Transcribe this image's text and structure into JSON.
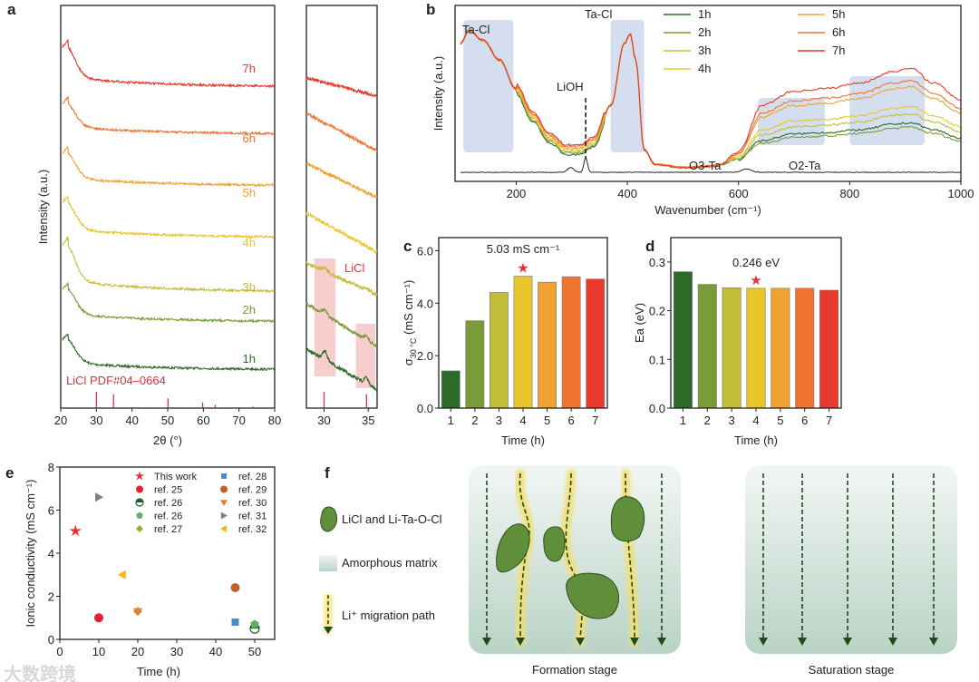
{
  "colors": {
    "1h": "#2c6a2a",
    "2h": "#7a9c38",
    "3h": "#c2bd38",
    "4h": "#e9c52c",
    "5h": "#f0a332",
    "6h": "#ee7430",
    "7h": "#e8392d",
    "ref": "#e0303a",
    "lioh": "#222222"
  },
  "panel_labels": {
    "a": "a",
    "b": "b",
    "c": "c",
    "d": "d",
    "e": "e",
    "f": "f"
  },
  "watermark": "大数跨境",
  "chart_data": [
    {
      "id": "a",
      "type": "line",
      "title": "",
      "xlabel": "2θ (°)",
      "ylabel": "Intensity (a.u.)",
      "xlim": [
        20,
        80
      ],
      "xticks": [
        20,
        30,
        40,
        50,
        60,
        70,
        80
      ],
      "series": [
        {
          "name": "1h"
        },
        {
          "name": "2h"
        },
        {
          "name": "3h"
        },
        {
          "name": "4h"
        },
        {
          "name": "5h"
        },
        {
          "name": "6h"
        },
        {
          "name": "7h"
        }
      ],
      "reference": {
        "label": "LiCl PDF#04–0664",
        "peaks": [
          30.0,
          34.8,
          50.1,
          59.8,
          63.3,
          73.9
        ],
        "relative_intensity": [
          1.0,
          0.85,
          0.6,
          0.35,
          0.2,
          0.1
        ]
      },
      "inset": {
        "xlim": [
          28,
          36
        ],
        "xticks": [
          30,
          35
        ],
        "annotation": "LiCl",
        "highlight_ranges": [
          [
            28.9,
            31.3
          ],
          [
            33.6,
            35.8
          ]
        ]
      }
    },
    {
      "id": "b",
      "type": "line",
      "xlabel": "Wavenumber (cm⁻¹)",
      "ylabel": "Intensity (a.u.)",
      "xlim": [
        90,
        1000
      ],
      "xticks": [
        200,
        400,
        600,
        800,
        1000
      ],
      "profile_x": [
        100,
        115,
        140,
        170,
        200,
        230,
        260,
        290,
        315,
        340,
        370,
        395,
        405,
        415,
        430,
        450,
        500,
        560,
        600,
        640,
        700,
        760,
        820,
        880,
        910,
        950,
        1000
      ],
      "profile_y": [
        0.8,
        0.88,
        0.82,
        0.7,
        0.52,
        0.35,
        0.22,
        0.15,
        0.15,
        0.2,
        0.42,
        0.8,
        0.86,
        0.7,
        0.15,
        0.06,
        0.04,
        0.05,
        0.1,
        0.24,
        0.29,
        0.3,
        0.32,
        0.36,
        0.37,
        0.32,
        0.26
      ],
      "series": [
        {
          "name": "1h",
          "high_region_scale": 0.85
        },
        {
          "name": "2h",
          "high_region_scale": 0.78
        },
        {
          "name": "3h",
          "high_region_scale": 1.0
        },
        {
          "name": "4h",
          "high_region_scale": 1.12
        },
        {
          "name": "5h",
          "high_region_scale": 1.45
        },
        {
          "name": "6h",
          "high_region_scale": 1.55
        },
        {
          "name": "7h",
          "high_region_scale": 1.75
        }
      ],
      "reference_name": "LiOH",
      "annotations": [
        "Ta-Cl",
        "Ta-Cl",
        "LiOH",
        "O3-Ta",
        "O2-Ta"
      ]
    },
    {
      "id": "c",
      "type": "bar",
      "categories": [
        "1",
        "2",
        "3",
        "4",
        "5",
        "6",
        "7"
      ],
      "values": [
        1.42,
        3.33,
        4.41,
        5.03,
        4.8,
        5.01,
        4.92
      ],
      "xlabel": "Time (h)",
      "ylabel": "σ30 °C (mS cm⁻¹)",
      "ylabel_main": "σ",
      "ylabel_sub": "30 °C",
      "ylabel_rest": " (mS cm⁻¹)",
      "ylim": [
        0,
        6.5
      ],
      "yticks": [
        "0.0",
        "2.0",
        "4.0",
        "6.0"
      ],
      "annotation": "5.03 mS cm⁻¹",
      "highlight_index": 3
    },
    {
      "id": "d",
      "type": "bar",
      "categories": [
        "1",
        "2",
        "3",
        "4",
        "5",
        "6",
        "7"
      ],
      "values": [
        0.28,
        0.254,
        0.247,
        0.246,
        0.246,
        0.246,
        0.242
      ],
      "xlabel": "Time (h)",
      "ylabel": "Ea (eV)",
      "ylim": [
        0,
        0.35
      ],
      "yticks": [
        "0.0",
        "0.1",
        "0.2",
        "0.3"
      ],
      "annotation": "0.246 eV",
      "highlight_index": 3
    },
    {
      "id": "e",
      "type": "scatter",
      "xlabel": "Time (h)",
      "ylabel": "Ionic conductivity (mS cm⁻¹)",
      "xlim": [
        0,
        55
      ],
      "ylim": [
        0,
        8
      ],
      "xticks": [
        0,
        10,
        20,
        30,
        40,
        50
      ],
      "yticks": [
        0,
        2,
        4,
        6,
        8
      ],
      "legend_position": "top-right",
      "points": [
        {
          "label": "This work",
          "x": 4,
          "y": 5.03,
          "marker": "star",
          "color": "#e8303a"
        },
        {
          "label": "ref. 25",
          "x": 10,
          "y": 1.0,
          "marker": "circle",
          "color": "#e32030"
        },
        {
          "label": "ref. 26",
          "x": 50,
          "y": 0.5,
          "marker": "halfcircle",
          "color": "#1f5c2a"
        },
        {
          "label": "ref. 26",
          "x": 50,
          "y": 0.7,
          "marker": "pentagon",
          "color": "#5fae6a"
        },
        {
          "label": "ref. 27",
          "x": 20,
          "y": 1.3,
          "marker": "diamond",
          "color": "#a3a62a"
        },
        {
          "label": "ref. 28",
          "x": 45,
          "y": 0.8,
          "marker": "square",
          "color": "#4a8cd0"
        },
        {
          "label": "ref. 29",
          "x": 45,
          "y": 2.4,
          "marker": "circle",
          "color": "#c0602a"
        },
        {
          "label": "ref. 30",
          "x": 20,
          "y": 1.3,
          "marker": "triangle-down",
          "color": "#ef7a30"
        },
        {
          "label": "ref. 31",
          "x": 10,
          "y": 6.6,
          "marker": "triangle-right",
          "color": "#808080"
        },
        {
          "label": "ref. 32",
          "x": 16,
          "y": 3.0,
          "marker": "triangle-left",
          "color": "#f2b81c"
        }
      ]
    }
  ],
  "schematic": {
    "legend": [
      "LiCl  and Li-Ta-O-Cl",
      "Amorphous matrix",
      "Li⁺ migration path"
    ],
    "stages": [
      "Formation stage",
      "Saturation stage"
    ]
  }
}
